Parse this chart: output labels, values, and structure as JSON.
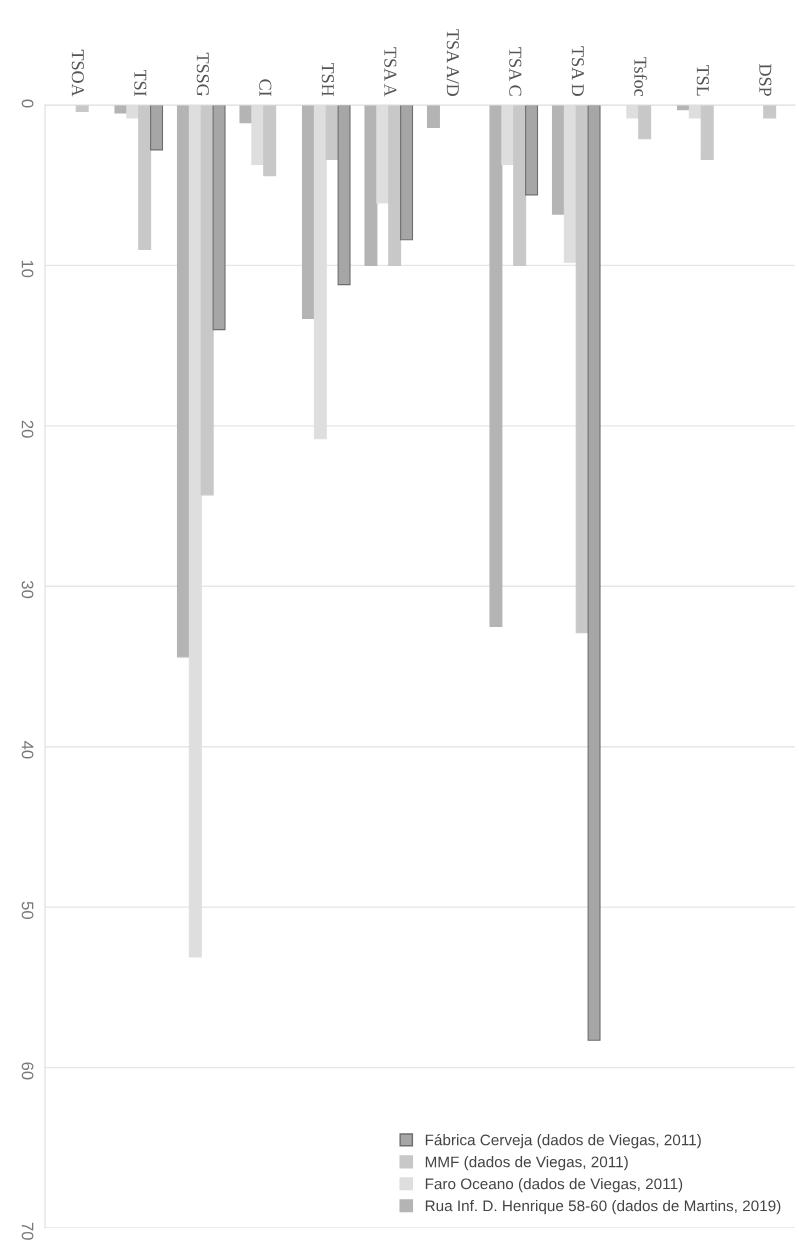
{
  "chart_data": {
    "type": "bar",
    "categories": [
      "TSOA",
      "TSI",
      "TSSG",
      "CI",
      "TSH",
      "TSA A",
      "TSA A/D",
      "TSA C",
      "TSA D",
      "Tsfoc",
      "TSL",
      "DSP"
    ],
    "series": [
      {
        "name": "Rua Inf. D. Henrique 58-60 (dados de Martins, 2019)",
        "color": "#b4b4b4",
        "values": [
          null,
          0.5,
          34.4,
          1.1,
          13.3,
          10.0,
          1.4,
          32.5,
          6.8,
          null,
          0.3,
          null
        ]
      },
      {
        "name": "Faro Oceano (dados de Viegas, 2011)",
        "color": "#dedede",
        "values": [
          null,
          0.8,
          53.1,
          3.7,
          20.8,
          6.1,
          null,
          3.7,
          9.8,
          0.8,
          0.8,
          null
        ]
      },
      {
        "name": "MMF (dados de Viegas, 2011)",
        "color": "#c8c8c8",
        "values": [
          0.4,
          9.0,
          24.3,
          4.4,
          3.4,
          10.0,
          null,
          10.0,
          32.9,
          2.1,
          3.4,
          0.8
        ]
      },
      {
        "name": "Fábrica Cerveja (dados de Viegas, 2011)",
        "color": "#a6a6a6",
        "values": [
          null,
          2.8,
          14.0,
          null,
          11.2,
          8.4,
          null,
          5.6,
          58.3,
          null,
          null,
          null
        ]
      }
    ],
    "ylim": [
      70,
      0
    ],
    "yticks": [
      0,
      10,
      20,
      30,
      40,
      50,
      60,
      70
    ],
    "grid": "y",
    "legend": "bottom right"
  }
}
